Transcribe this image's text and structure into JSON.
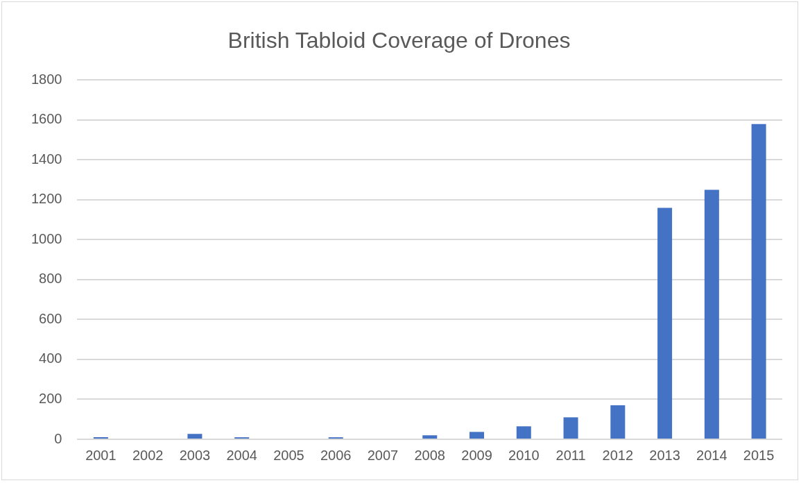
{
  "chart_data": {
    "type": "bar",
    "title": "British Tabloid Coverage of Drones",
    "categories": [
      "2001",
      "2002",
      "2003",
      "2004",
      "2005",
      "2006",
      "2007",
      "2008",
      "2009",
      "2010",
      "2011",
      "2012",
      "2013",
      "2014",
      "2015"
    ],
    "values": [
      10,
      0,
      27,
      10,
      0,
      10,
      0,
      20,
      37,
      65,
      110,
      170,
      1160,
      1250,
      1580
    ],
    "color": "#4472c4",
    "ylim": [
      0,
      1800
    ],
    "yticks": [
      0,
      200,
      400,
      600,
      800,
      1000,
      1200,
      1400,
      1600,
      1800
    ],
    "grid": "y"
  }
}
